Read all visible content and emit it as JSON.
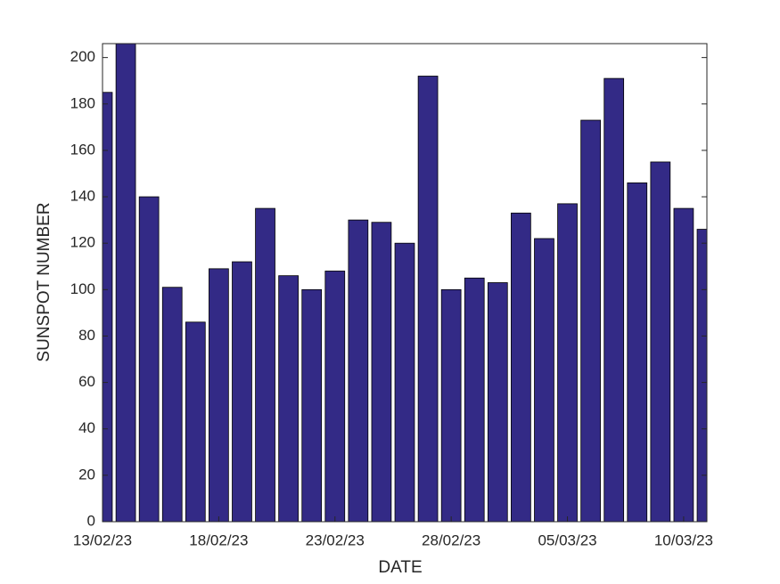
{
  "chart_data": {
    "type": "bar",
    "x": [
      "13/02/23",
      "14/02/23",
      "15/02/23",
      "16/02/23",
      "17/02/23",
      "18/02/23",
      "19/02/23",
      "20/02/23",
      "21/02/23",
      "22/02/23",
      "23/02/23",
      "24/02/23",
      "25/02/23",
      "26/02/23",
      "27/02/23",
      "28/02/23",
      "01/03/23",
      "02/03/23",
      "03/03/23",
      "04/03/23",
      "05/03/23",
      "06/03/23",
      "07/03/23",
      "08/03/23",
      "09/03/23",
      "10/03/23",
      "11/03/23"
    ],
    "values": [
      185,
      206,
      140,
      101,
      86,
      109,
      112,
      135,
      106,
      100,
      108,
      130,
      129,
      120,
      192,
      100,
      105,
      103,
      133,
      122,
      137,
      173,
      191,
      146,
      155,
      135,
      126
    ],
    "color": "#332a86",
    "xlabel": "DATE",
    "ylabel": "SUNSPOT  NUMBER",
    "xlim": [
      "13/02/23",
      "11/03/23"
    ],
    "xticks": [
      "13/02/23",
      "18/02/23",
      "23/02/23",
      "28/02/23",
      "05/03/23",
      "10/03/23"
    ],
    "ylim": [
      0,
      206
    ],
    "yticks": [
      0,
      20,
      40,
      60,
      80,
      100,
      120,
      140,
      160,
      180,
      200
    ],
    "grid": false
  }
}
